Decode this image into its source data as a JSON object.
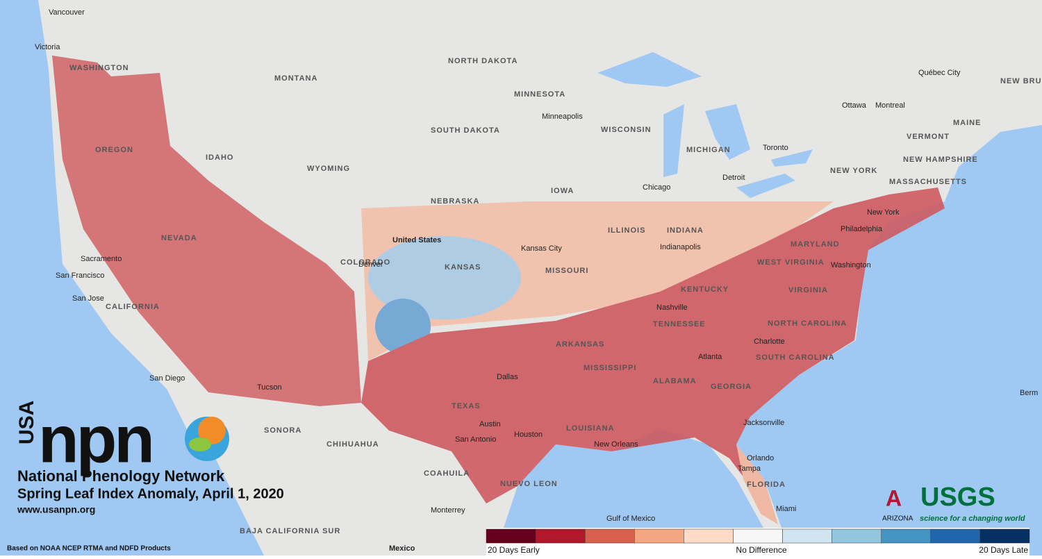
{
  "map": {
    "labels": [
      "Vancouver",
      "Victoria",
      "WASHINGTON",
      "MONTANA",
      "NORTH DAKOTA",
      "MINNESOTA",
      "Minneapolis",
      "WISCONSIN",
      "MICHIGAN",
      "SOUTH DAKOTA",
      "WYOMING",
      "IDAHO",
      "OREGON",
      "NEVADA",
      "Sacramento",
      "San Francisco",
      "San Jose",
      "CALIFORNIA",
      "United States",
      "COLORADO",
      "NEBRASKA",
      "IOWA",
      "Chicago",
      "Detroit",
      "Toronto",
      "Ottawa",
      "Montreal",
      "Québec City",
      "NEW BRUNSWICK",
      "MAINE",
      "VERMONT",
      "NEW HAMPSHIRE",
      "MASSACHUSETTS",
      "NEW YORK",
      "New York",
      "Philadelphia",
      "MARYLAND",
      "Washington",
      "WEST VIRGINIA",
      "VIRGINIA",
      "KANSAS",
      "Kansas City",
      "MISSOURI",
      "ILLINOIS",
      "INDIANA",
      "Indianapolis",
      "KENTUCKY",
      "Nashville",
      "TENNESSEE",
      "NORTH CAROLINA",
      "Charlotte",
      "SOUTH CAROLINA",
      "Atlanta",
      "GEORGIA",
      "ALABAMA",
      "MISSISSIPPI",
      "ARKANSAS",
      "Dallas",
      "TEXAS",
      "Austin",
      "San Antonio",
      "Houston",
      "LOUISIANA",
      "New Orleans",
      "Jacksonville",
      "Orlando",
      "Tampa",
      "FLORIDA",
      "Miami",
      "SONORA",
      "CHIHUAHUA",
      "COAHUILA",
      "NUEVO LEON",
      "Monterrey",
      "Mexico",
      "BAJA CALIFORNIA SUR",
      "Gulf of Mexico",
      "San Diego",
      "Tucson",
      "Denver",
      "Berm"
    ]
  },
  "branding": {
    "usa": "USA",
    "npn": "npn",
    "network": "National Phenology Network",
    "title": "Spring Leaf Index Anomaly, April 1, 2020",
    "url": "www.usanpn.org",
    "source": "Based on NOAA NCEP RTMA and NDFD Products",
    "arizona": "ARIZONA",
    "usgs": "USGS",
    "usgs_tagline": "science for a changing world"
  },
  "legend": {
    "colors": [
      "#67001f",
      "#b2182b",
      "#d6604d",
      "#f4a582",
      "#fddbc7",
      "#f7f7f7",
      "#d1e5f0",
      "#92c5de",
      "#4393c3",
      "#2166ac",
      "#053061"
    ],
    "left_label": "20 Days Early",
    "center_label": "No Difference",
    "right_label": "20 Days Late"
  }
}
